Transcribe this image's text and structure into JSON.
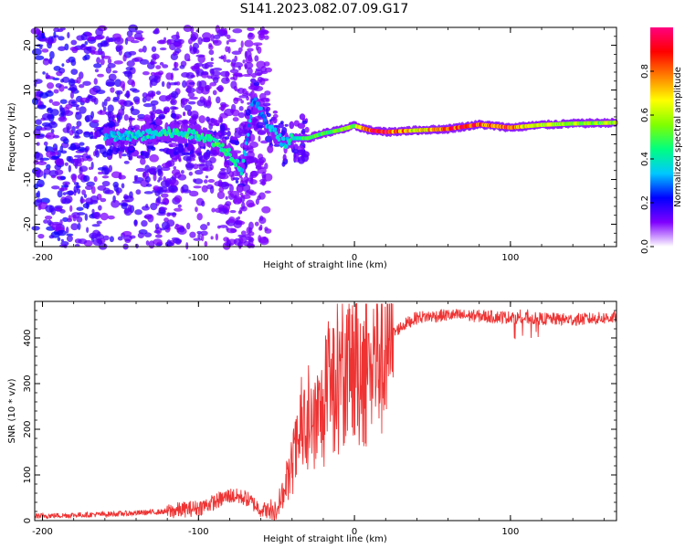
{
  "title": "S141.2023.082.07.09.G17",
  "colors": {
    "snr_line": "#ee3333",
    "axis": "#000000",
    "ridge_core": "#dd2222"
  },
  "chart_data": [
    {
      "type": "heatmap",
      "xlabel": "Height of straight line (km)",
      "ylabel": "Frequency (Hz)",
      "xlim": [
        -205,
        168
      ],
      "ylim": [
        -25,
        24
      ],
      "x_ticks": [
        "-200",
        "-100",
        "0",
        "100"
      ],
      "x_tick_values": [
        -200,
        -100,
        0,
        100
      ],
      "y_ticks": [
        "-20",
        "-10",
        "0",
        "10",
        "20"
      ],
      "y_tick_values": [
        -20,
        -10,
        0,
        10,
        20
      ],
      "colorbar": {
        "label": "Normalized spectral amplitude",
        "range": [
          0,
          1
        ],
        "ticks": [
          "0.0",
          "0.2",
          "0.4",
          "0.6",
          "0.8"
        ],
        "tick_values": [
          0.0,
          0.2,
          0.4,
          0.6,
          0.8
        ],
        "colormap": [
          "#ffffff",
          "#7f00ff",
          "#0000ff",
          "#00c8ff",
          "#00ff80",
          "#80ff00",
          "#ffff00",
          "#ff8000",
          "#ff0000",
          "#ff0080"
        ]
      },
      "ridge": {
        "x": [
          -160,
          -140,
          -120,
          -100,
          -90,
          -80,
          -72,
          -65,
          -55,
          -45,
          -40,
          -30,
          -20,
          -10,
          0,
          10,
          20,
          40,
          60,
          80,
          100,
          120,
          140,
          168
        ],
        "freq": [
          -0.5,
          -0.3,
          0.5,
          0,
          -1.5,
          -4,
          -8,
          8,
          2,
          -2,
          -0.8,
          -0.8,
          0.3,
          1,
          2,
          1,
          0.6,
          1,
          1.3,
          2.3,
          1.6,
          2.2,
          2.5,
          2.7
        ],
        "amplitude": [
          0.35,
          0.4,
          0.45,
          0.45,
          0.5,
          0.45,
          0.4,
          0.3,
          0.35,
          0.4,
          0.45,
          0.5,
          0.55,
          0.55,
          0.6,
          0.95,
          0.95,
          0.7,
          0.9,
          0.9,
          0.85,
          0.65,
          0.6,
          0.6
        ]
      }
    },
    {
      "type": "line",
      "xlabel": "Height of straight line (km)",
      "ylabel": "SNR (10 * v/v)",
      "xlim": [
        -205,
        168
      ],
      "ylim": [
        0,
        480
      ],
      "x_ticks": [
        "-200",
        "-100",
        "0",
        "100"
      ],
      "x_tick_values": [
        -200,
        -100,
        0,
        100
      ],
      "y_ticks": [
        "0",
        "100",
        "200",
        "300",
        "400"
      ],
      "y_tick_values": [
        0,
        100,
        200,
        300,
        400
      ],
      "series": [
        {
          "name": "SNR",
          "x": [
            -205,
            -180,
            -150,
            -120,
            -100,
            -90,
            -80,
            -70,
            -60,
            -52,
            -45,
            -40,
            -35,
            -30,
            -25,
            -20,
            -15,
            -10,
            -5,
            0,
            5,
            10,
            15,
            20,
            25,
            30,
            40,
            60,
            80,
            100,
            120,
            140,
            168
          ],
          "values": [
            10,
            12,
            15,
            20,
            28,
            40,
            55,
            50,
            25,
            20,
            60,
            120,
            180,
            200,
            210,
            240,
            290,
            300,
            320,
            330,
            340,
            330,
            370,
            390,
            410,
            425,
            445,
            450,
            448,
            445,
            442,
            440,
            445
          ]
        }
      ]
    }
  ]
}
